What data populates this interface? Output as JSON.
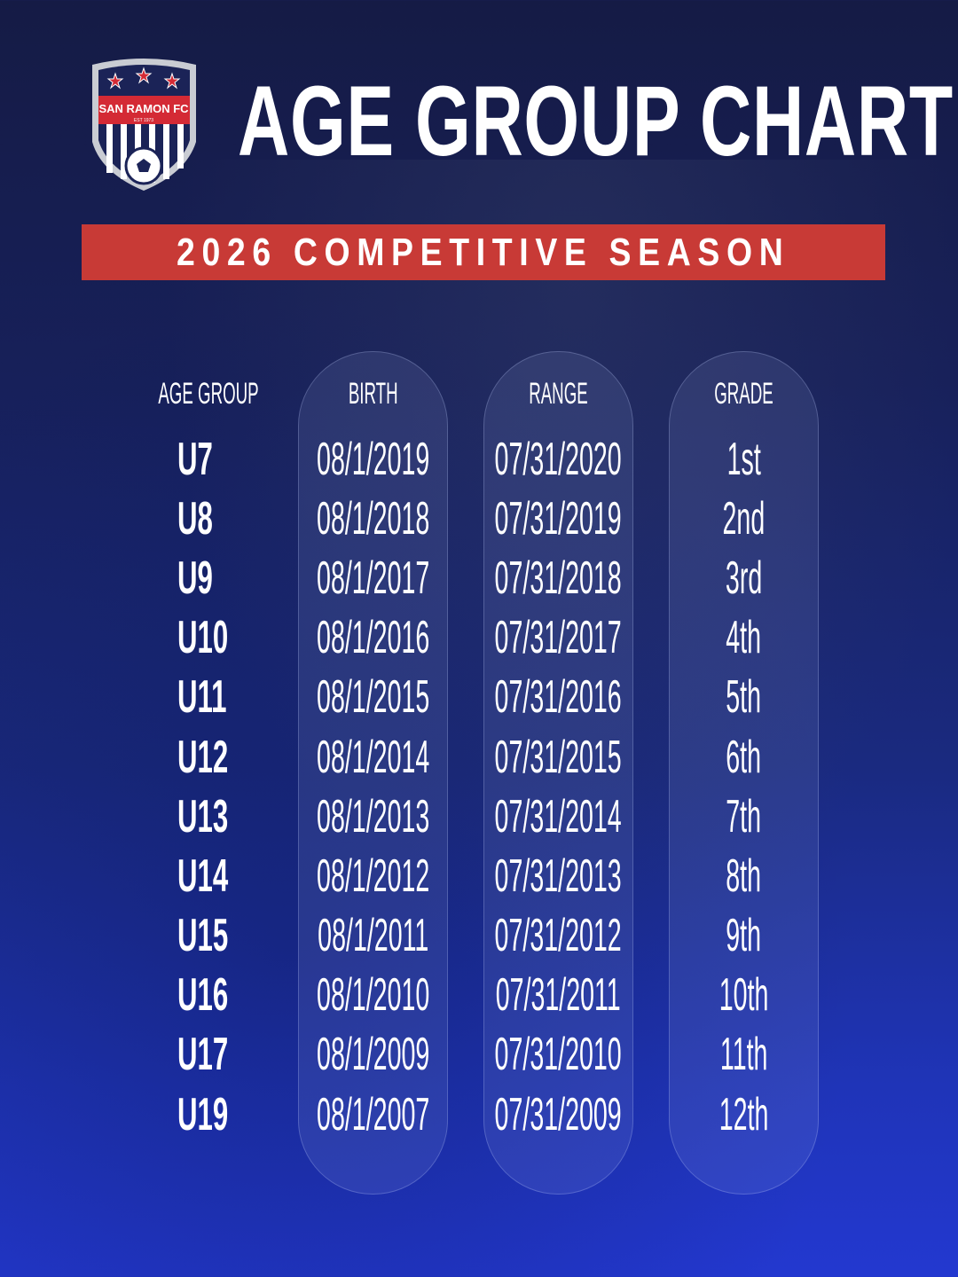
{
  "logo": {
    "name": "SAN RAMON FC",
    "est": "EST 1973",
    "colors": {
      "navy": "#1b2357",
      "red": "#d42a35",
      "silver": "#c9ccd3"
    }
  },
  "title": "AGE GROUP CHART",
  "banner": {
    "text": "2026 COMPETITIVE SEASON",
    "color": "#c83a36"
  },
  "table": {
    "headers": [
      "AGE GROUP",
      "BIRTH",
      "RANGE",
      "GRADE"
    ],
    "rows": [
      {
        "age": "U7",
        "birth": "08/1/2019",
        "range": "07/31/2020",
        "grade": "1st"
      },
      {
        "age": "U8",
        "birth": "08/1/2018",
        "range": "07/31/2019",
        "grade": "2nd"
      },
      {
        "age": "U9",
        "birth": "08/1/2017",
        "range": "07/31/2018",
        "grade": "3rd"
      },
      {
        "age": "U10",
        "birth": "08/1/2016",
        "range": "07/31/2017",
        "grade": "4th"
      },
      {
        "age": "U11",
        "birth": "08/1/2015",
        "range": "07/31/2016",
        "grade": "5th"
      },
      {
        "age": "U12",
        "birth": "08/1/2014",
        "range": "07/31/2015",
        "grade": "6th"
      },
      {
        "age": "U13",
        "birth": "08/1/2013",
        "range": "07/31/2014",
        "grade": "7th"
      },
      {
        "age": "U14",
        "birth": "08/1/2012",
        "range": "07/31/2013",
        "grade": "8th"
      },
      {
        "age": "U15",
        "birth": "08/1/2011",
        "range": "07/31/2012",
        "grade": "9th"
      },
      {
        "age": "U16",
        "birth": "08/1/2010",
        "range": "07/31/2011",
        "grade": "10th"
      },
      {
        "age": "U17",
        "birth": "08/1/2009",
        "range": "07/31/2010",
        "grade": "11th"
      },
      {
        "age": "U19",
        "birth": "08/1/2007",
        "range": "07/31/2009",
        "grade": "12th"
      }
    ]
  }
}
